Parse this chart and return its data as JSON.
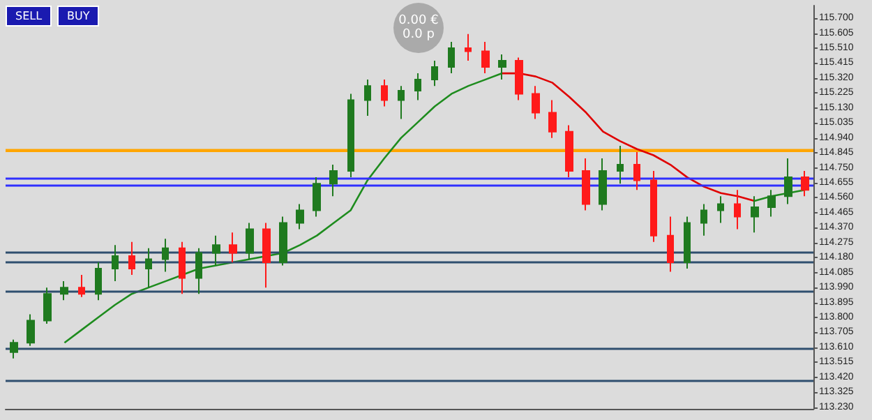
{
  "chart_data": {
    "type": "candlestick",
    "grid": false,
    "categories": [
      null,
      null,
      null,
      null,
      null,
      null,
      null,
      null,
      null,
      null,
      null,
      null,
      null,
      null,
      null,
      null,
      null,
      null,
      null,
      null,
      null,
      null,
      null,
      null,
      null,
      null,
      null,
      null,
      null,
      null,
      null,
      null,
      null,
      null,
      null,
      null,
      null,
      null,
      null,
      null,
      null,
      null,
      null,
      null,
      null,
      null,
      null,
      null
    ],
    "ylim": [
      113.22,
      115.78
    ],
    "yticks": [
      {
        "value": 115.7,
        "label": "115.700"
      },
      {
        "value": 115.605,
        "label": "115.605"
      },
      {
        "value": 115.51,
        "label": "115.510"
      },
      {
        "value": 115.415,
        "label": "115.415"
      },
      {
        "value": 115.32,
        "label": "115.320"
      },
      {
        "value": 115.225,
        "label": "115.225"
      },
      {
        "value": 115.13,
        "label": "115.130"
      },
      {
        "value": 115.035,
        "label": "115.035"
      },
      {
        "value": 114.94,
        "label": "114.940"
      },
      {
        "value": 114.845,
        "label": "114.845"
      },
      {
        "value": 114.75,
        "label": "114.750"
      },
      {
        "value": 114.655,
        "label": "114.655"
      },
      {
        "value": 114.56,
        "label": "114.560"
      },
      {
        "value": 114.465,
        "label": "114.465"
      },
      {
        "value": 114.37,
        "label": "114.370"
      },
      {
        "value": 114.275,
        "label": "114.275"
      },
      {
        "value": 114.18,
        "label": "114.180"
      },
      {
        "value": 114.085,
        "label": "114.085"
      },
      {
        "value": 113.99,
        "label": "113.990"
      },
      {
        "value": 113.895,
        "label": "113.895"
      },
      {
        "value": 113.8,
        "label": "113.800"
      },
      {
        "value": 113.705,
        "label": "113.705"
      },
      {
        "value": 113.61,
        "label": "113.610"
      },
      {
        "value": 113.515,
        "label": "113.515"
      },
      {
        "value": 113.42,
        "label": "113.420"
      },
      {
        "value": 113.325,
        "label": "113.325"
      },
      {
        "value": 113.23,
        "label": "113.230"
      }
    ],
    "colors": [
      "#1f7a1f",
      "#1f7a1f",
      "#1f7a1f",
      "#1f7a1f",
      "#ff1a1a",
      "#1f7a1f",
      "#1f7a1f",
      "#ff1a1a",
      "#1f7a1f",
      "#1f7a1f",
      "#ff1a1a",
      "#1f7a1f",
      "#1f7a1f",
      "#ff1a1a",
      "#1f7a1f",
      "#ff1a1a",
      "#1f7a1f",
      "#1f7a1f",
      "#1f7a1f",
      "#1f7a1f",
      "#1f7a1f",
      "#1f7a1f",
      "#ff1a1a",
      "#1f7a1f",
      "#1f7a1f",
      "#1f7a1f",
      "#1f7a1f",
      "#ff1a1a",
      "#ff1a1a",
      "#1f7a1f",
      "#ff1a1a",
      "#ff1a1a",
      "#ff1a1a",
      "#ff1a1a",
      "#ff1a1a",
      "#1f7a1f",
      "#1f7a1f",
      "#ff1a1a",
      "#ff1a1a",
      "#ff1a1a",
      "#1f7a1f",
      "#1f7a1f",
      "#1f7a1f",
      "#ff1a1a",
      "#1f7a1f",
      "#1f7a1f",
      "#1f7a1f",
      "#ff1a1a"
    ],
    "ohlc": [
      [
        113.58,
        113.66,
        113.54,
        113.64
      ],
      [
        113.64,
        113.82,
        113.62,
        113.78
      ],
      [
        113.78,
        113.99,
        113.76,
        113.95
      ],
      [
        113.95,
        114.03,
        113.91,
        113.99
      ],
      [
        113.99,
        114.07,
        113.93,
        113.95
      ],
      [
        113.95,
        114.15,
        113.91,
        114.11
      ],
      [
        114.11,
        114.26,
        114.03,
        114.19
      ],
      [
        114.19,
        114.28,
        114.07,
        114.11
      ],
      [
        114.11,
        114.24,
        113.99,
        114.17
      ],
      [
        114.17,
        114.3,
        114.09,
        114.24
      ],
      [
        114.24,
        114.28,
        113.95,
        114.05
      ],
      [
        114.05,
        114.24,
        113.95,
        114.21
      ],
      [
        114.21,
        114.32,
        114.13,
        114.26
      ],
      [
        114.26,
        114.34,
        114.15,
        114.21
      ],
      [
        114.21,
        114.4,
        114.17,
        114.36
      ],
      [
        114.36,
        114.4,
        113.99,
        114.15
      ],
      [
        114.15,
        114.44,
        114.13,
        114.4
      ],
      [
        114.4,
        114.52,
        114.36,
        114.48
      ],
      [
        114.48,
        114.69,
        114.44,
        114.65
      ],
      [
        114.65,
        114.77,
        114.57,
        114.73
      ],
      [
        114.73,
        115.22,
        114.69,
        115.18
      ],
      [
        115.18,
        115.31,
        115.08,
        115.27
      ],
      [
        115.27,
        115.31,
        115.14,
        115.18
      ],
      [
        115.18,
        115.27,
        115.06,
        115.24
      ],
      [
        115.24,
        115.35,
        115.18,
        115.31
      ],
      [
        115.31,
        115.43,
        115.27,
        115.39
      ],
      [
        115.39,
        115.55,
        115.35,
        115.51
      ],
      [
        115.51,
        115.6,
        115.43,
        115.49
      ],
      [
        115.49,
        115.55,
        115.35,
        115.39
      ],
      [
        115.39,
        115.47,
        115.31,
        115.43
      ],
      [
        115.43,
        115.45,
        115.18,
        115.22
      ],
      [
        115.22,
        115.27,
        115.06,
        115.1
      ],
      [
        115.1,
        115.18,
        114.94,
        114.98
      ],
      [
        114.98,
        115.02,
        114.69,
        114.73
      ],
      [
        114.73,
        114.81,
        114.48,
        114.52
      ],
      [
        114.52,
        114.81,
        114.48,
        114.73
      ],
      [
        114.73,
        114.89,
        114.65,
        114.77
      ],
      [
        114.77,
        114.85,
        114.61,
        114.67
      ],
      [
        114.67,
        114.73,
        114.28,
        114.32
      ],
      [
        114.32,
        114.44,
        114.09,
        114.15
      ],
      [
        114.15,
        114.44,
        114.11,
        114.4
      ],
      [
        114.4,
        114.52,
        114.32,
        114.48
      ],
      [
        114.48,
        114.57,
        114.4,
        114.52
      ],
      [
        114.52,
        114.61,
        114.36,
        114.44
      ],
      [
        114.44,
        114.57,
        114.34,
        114.5
      ],
      [
        114.5,
        114.61,
        114.44,
        114.57
      ],
      [
        114.57,
        114.81,
        114.52,
        114.69
      ],
      [
        114.69,
        114.73,
        114.57,
        114.61
      ]
    ],
    "series": [
      {
        "type": "line",
        "color": "#1e8c1e",
        "values": [
          null,
          null,
          null,
          113.64,
          113.72,
          113.8,
          113.88,
          113.95,
          113.99,
          114.03,
          114.07,
          114.11,
          114.13,
          114.15,
          114.17,
          114.19,
          114.21,
          114.26,
          114.32,
          114.4,
          114.48,
          114.67,
          114.81,
          114.94,
          115.04,
          115.14,
          115.22,
          115.27,
          115.31,
          115.35,
          null,
          null,
          null,
          null,
          null,
          null,
          null,
          null,
          null,
          null,
          null,
          null,
          null,
          null,
          null,
          null,
          null,
          null
        ]
      },
      {
        "type": "line",
        "color": "#1e8c1e",
        "values": [
          null,
          null,
          null,
          null,
          null,
          null,
          null,
          null,
          null,
          null,
          null,
          null,
          null,
          null,
          null,
          null,
          null,
          null,
          null,
          null,
          null,
          null,
          null,
          null,
          null,
          null,
          null,
          null,
          null,
          null,
          null,
          null,
          null,
          null,
          null,
          null,
          null,
          null,
          null,
          null,
          null,
          null,
          null,
          null,
          114.54,
          114.57,
          114.59,
          114.61
        ]
      },
      {
        "type": "line",
        "color": "#e00000",
        "values": [
          null,
          null,
          null,
          null,
          null,
          null,
          null,
          null,
          null,
          null,
          null,
          null,
          null,
          null,
          null,
          null,
          null,
          null,
          null,
          null,
          null,
          null,
          null,
          null,
          null,
          null,
          null,
          null,
          null,
          115.35,
          115.35,
          115.33,
          115.29,
          115.2,
          115.1,
          114.98,
          114.92,
          114.87,
          114.83,
          114.77,
          114.69,
          114.63,
          114.59,
          114.57,
          114.54,
          null,
          null,
          null
        ]
      }
    ],
    "ref_lines": [
      {
        "axis": "y",
        "value": 114.68,
        "color": "#3030ff"
      },
      {
        "axis": "y",
        "value": 114.64,
        "color": "#3030ff"
      },
      {
        "axis": "y",
        "value": 114.21,
        "color": "#2f4f6f"
      },
      {
        "axis": "y",
        "value": 114.15,
        "color": "#2f4f6f"
      },
      {
        "axis": "y",
        "value": 113.97,
        "color": "#2f4f6f"
      },
      {
        "axis": "y",
        "value": 113.6,
        "color": "#2f4f6f"
      },
      {
        "axis": "y",
        "value": 113.4,
        "color": "#2f4f6f"
      }
    ],
    "bands": [
      {
        "axis": "y",
        "from": 114.85,
        "to": 114.87,
        "color": "#ffa500"
      }
    ],
    "annotations": [
      "SELL",
      "BUY",
      "0.00 €",
      "0.0 p"
    ]
  }
}
